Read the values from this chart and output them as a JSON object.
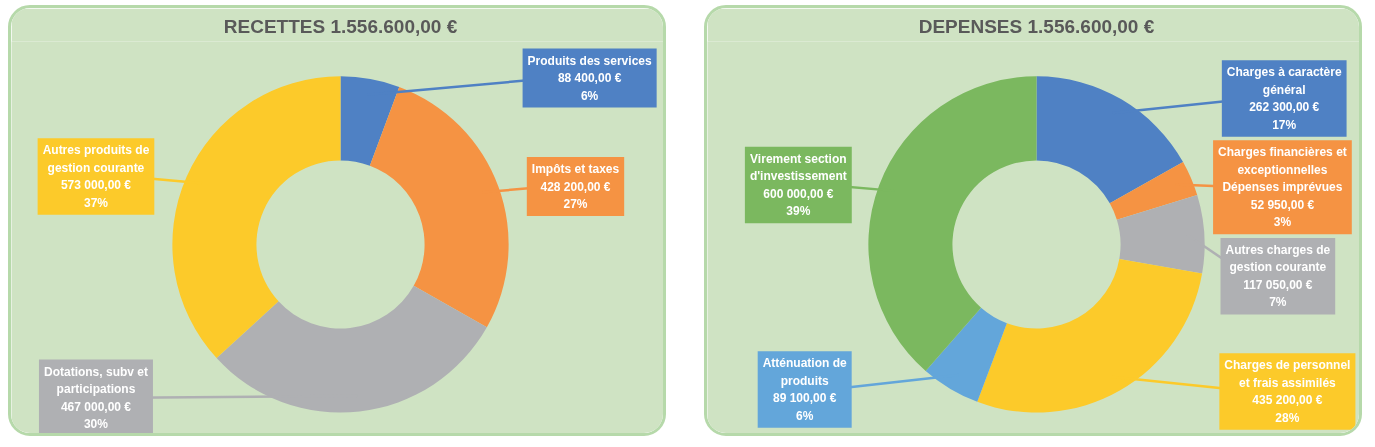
{
  "chart_data": [
    {
      "type": "donut",
      "title": "RECETTES 1.556.600,00 €",
      "categories": [
        "Produits des services",
        "Impôts et taxes",
        "Dotations, subv et participations",
        "Autres produits de gestion courante"
      ],
      "values": [
        88400,
        428200,
        467000,
        573000
      ],
      "colors": [
        "#4f81c4",
        "#f59343",
        "#afb0b3",
        "#fcca2a"
      ],
      "value_labels": [
        "88 400,00 €\n6%",
        "428 200,00 €\n27%",
        "467 000,00 €\n30%",
        "573 000,00 €\n37%"
      ]
    },
    {
      "type": "donut",
      "title": "DEPENSES 1.556.600,00 €",
      "categories": [
        "Charges à caractère général",
        "Charges financières et exceptionnelles Dépenses imprévues",
        "Autres charges de gestion courante",
        "Charges de personnel et frais assimilés",
        "Atténuation de produits",
        "Virement section d'investissement"
      ],
      "values": [
        262300,
        52950,
        117050,
        435200,
        89100,
        600000
      ],
      "colors": [
        "#4f81c4",
        "#f59343",
        "#afb0b3",
        "#fcca2a",
        "#63a6da",
        "#7bb85f"
      ],
      "value_labels": [
        "262 300,00 €\n17%",
        "52 950,00 €\n3%",
        "117 050,00 €\n7%",
        "435 200,00 €\n28%",
        "89 100,00 €\n6%",
        "600 000,00 €\n39%"
      ]
    }
  ]
}
